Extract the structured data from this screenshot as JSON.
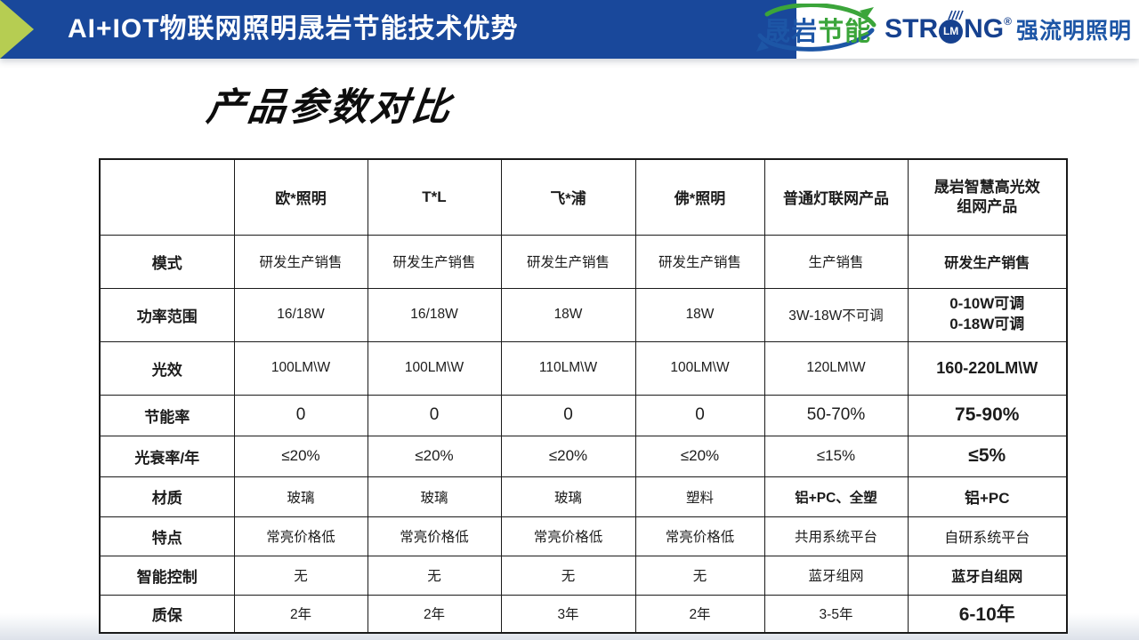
{
  "banner": {
    "title": "AI+IOT物联网照明晟岩节能技术优势",
    "bg_color": "#19489B",
    "arrow_color": "#B6CD52"
  },
  "logos": {
    "shengyan": {
      "text_blue": "晟岩",
      "text_green": "节能",
      "blue": "#1D56A6",
      "green": "#3BA53A"
    },
    "strong": {
      "pre": "STR",
      "circle": "LM",
      "post": "NG",
      "reg": "®",
      "cn": "强流明照明",
      "blue": "#16418F"
    }
  },
  "page_title": "产品参数对比",
  "table": {
    "highlight_color": "#ED7C1E",
    "columns": [
      "",
      "欧*照明",
      "T*L",
      "飞*浦",
      "佛*照明",
      "普通灯联网产品",
      "晟岩智慧高光效\n组网产品"
    ],
    "rows": [
      {
        "label": "模式",
        "values": [
          "研发生产销售",
          "研发生产销售",
          "研发生产销售",
          "研发生产销售",
          "生产销售",
          "研发生产销售"
        ]
      },
      {
        "label": "功率范围",
        "values": [
          "16/18W",
          "16/18W",
          "18W",
          "18W",
          "3W-18W不可调",
          "0-10W可调\n0-18W可调"
        ]
      },
      {
        "label": "光效",
        "values": [
          "100LM\\W",
          "100LM\\W",
          "110LM\\W",
          "100LM\\W",
          "120LM\\W",
          "160-220LM\\W"
        ]
      },
      {
        "label": "节能率",
        "values": [
          "0",
          "0",
          "0",
          "0",
          "50-70%",
          "75-90%"
        ]
      },
      {
        "label": "光衰率/年",
        "values": [
          "≤20%",
          "≤20%",
          "≤20%",
          "≤20%",
          "≤15%",
          "≤5%"
        ]
      },
      {
        "label": "材质",
        "values": [
          "玻璃",
          "玻璃",
          "玻璃",
          "塑料",
          "铝+PC、全塑",
          "铝+PC"
        ]
      },
      {
        "label": "特点",
        "values": [
          "常亮价格低",
          "常亮价格低",
          "常亮价格低",
          "常亮价格低",
          "共用系统平台",
          "自研系统平台"
        ]
      },
      {
        "label": "智能控制",
        "values": [
          "无",
          "无",
          "无",
          "无",
          "蓝牙组网",
          "蓝牙自组网"
        ]
      },
      {
        "label": "质保",
        "values": [
          "2年",
          "2年",
          "3年",
          "2年",
          "3-5年",
          "6-10年"
        ]
      }
    ]
  }
}
